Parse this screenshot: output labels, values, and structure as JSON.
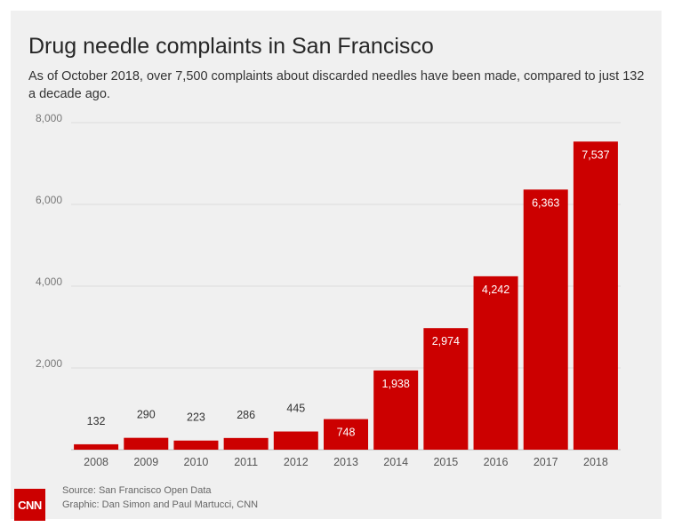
{
  "header": {
    "title": "Drug needle complaints in San Francisco",
    "subtitle": "As of October 2018, over 7,500 complaints about discarded needles have been made, compared to just 132 a decade ago."
  },
  "footer": {
    "source": "Source: San Francisco Open Data",
    "graphic": "Graphic: Dan Simon and Paul Martucci, CNN",
    "logo_text": "CNN"
  },
  "colors": {
    "bar": "#cc0000",
    "background": "#f0f0f0",
    "gridline": "#dcdcdc",
    "label_inside": "#ffffff",
    "label_outside": "#333333"
  },
  "chart_data": {
    "type": "bar",
    "title": "Drug needle complaints in San Francisco",
    "subtitle": "As of October 2018, over 7,500 complaints about discarded needles have been made, compared to just 132 a decade ago.",
    "categories": [
      "2008",
      "2009",
      "2010",
      "2011",
      "2012",
      "2013",
      "2014",
      "2015",
      "2016",
      "2017",
      "2018"
    ],
    "values": [
      132,
      290,
      223,
      286,
      445,
      748,
      1938,
      2974,
      4242,
      6363,
      7537
    ],
    "value_labels": [
      "132",
      "290",
      "223",
      "286",
      "445",
      "748",
      "1,938",
      "2,974",
      "4,242",
      "6,363",
      "7,537"
    ],
    "ylim": [
      0,
      8000
    ],
    "yticks": [
      2000,
      4000,
      6000,
      8000
    ],
    "ytick_labels": [
      "2,000",
      "4,000",
      "6,000",
      "8,000"
    ],
    "xlabel": "",
    "ylabel": "",
    "grid": true,
    "legend": "none"
  }
}
